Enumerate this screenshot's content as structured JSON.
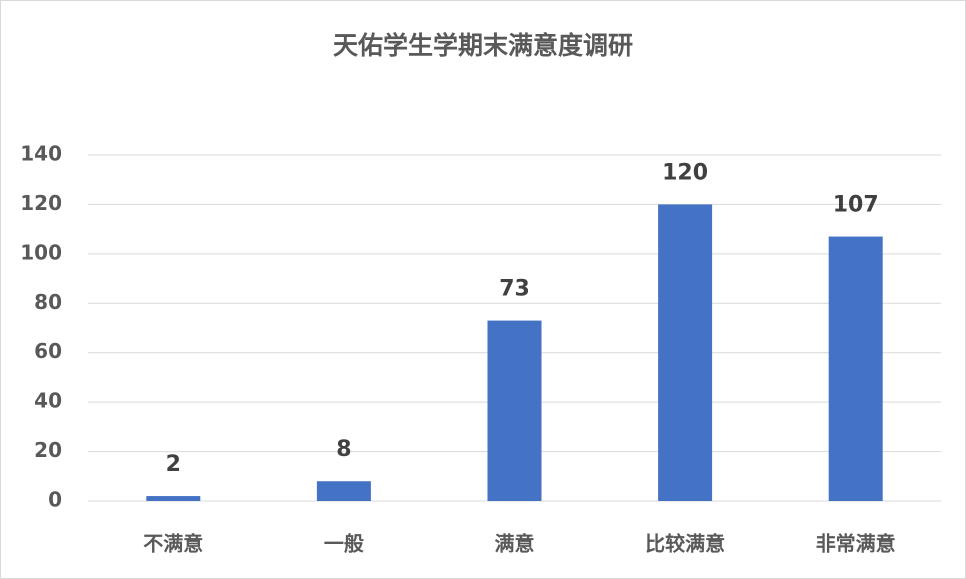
{
  "chart_data": {
    "type": "bar",
    "title": "天佑学生学期末满意度调研",
    "categories": [
      "不满意",
      "一般",
      "满意",
      "比较满意",
      "非常满意"
    ],
    "values": [
      2,
      8,
      73,
      120,
      107
    ],
    "color": "#4472c4",
    "ylim": [
      0,
      140
    ],
    "yticks": [
      0,
      20,
      40,
      60,
      80,
      100,
      120,
      140
    ],
    "grid": true
  }
}
